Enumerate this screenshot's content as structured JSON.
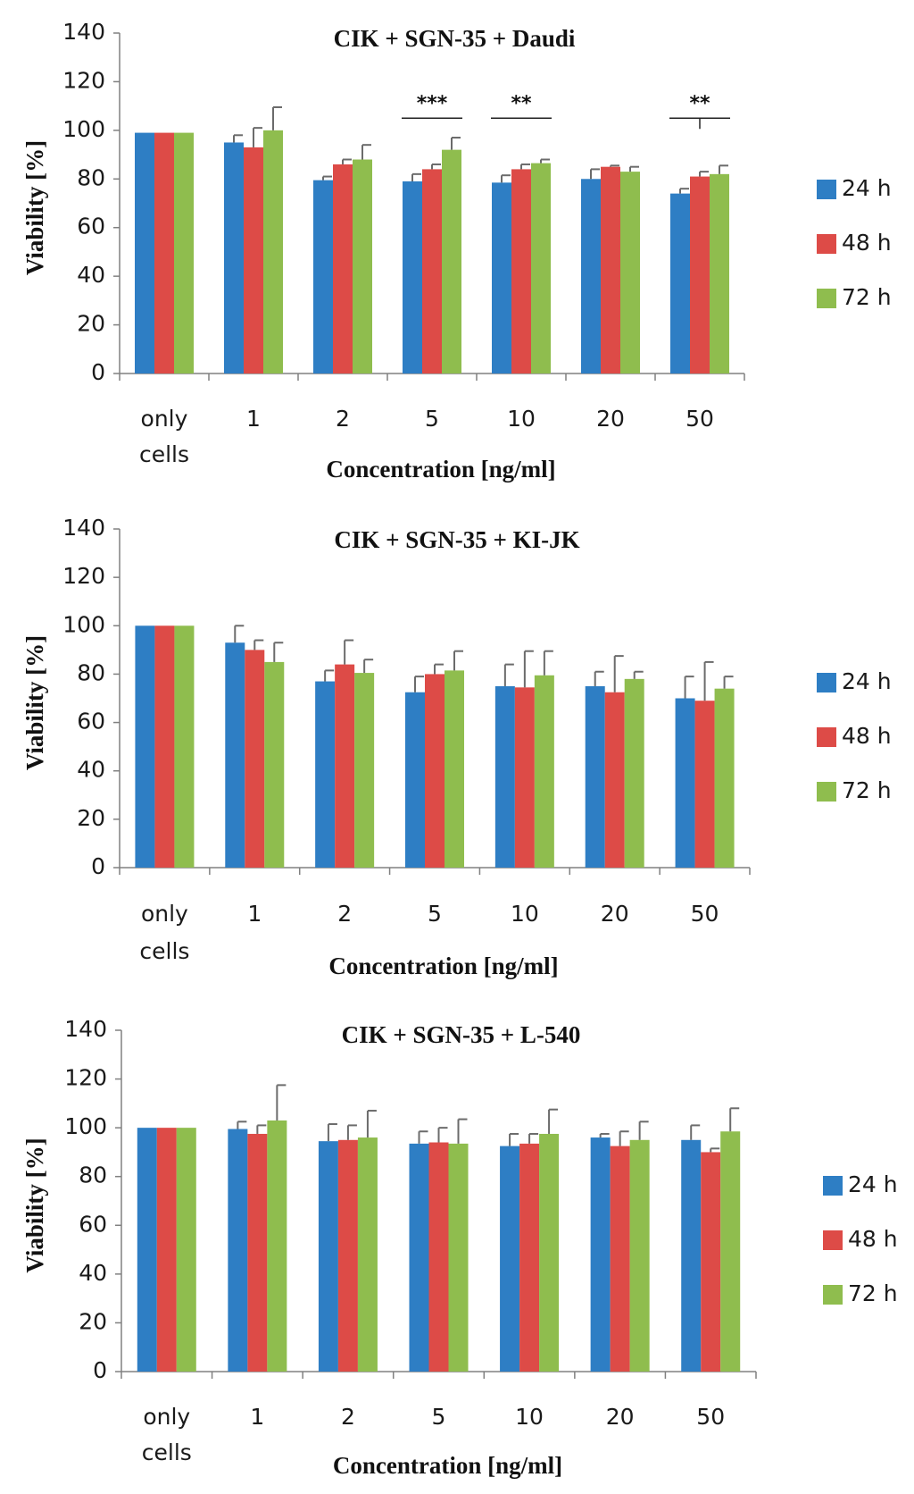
{
  "chart_data": [
    {
      "type": "bar",
      "title": "CIK + SGN-35 + Daudi",
      "xlabel": "Concentration [ng/ml]",
      "ylabel": "Viability [%]",
      "ylim": [
        0,
        140
      ],
      "yticks": [
        0,
        20,
        40,
        60,
        80,
        100,
        120,
        140
      ],
      "grid": false,
      "legend_position": "right",
      "categories": [
        [
          "only",
          "cells"
        ],
        [
          "1"
        ],
        [
          "2"
        ],
        [
          "5"
        ],
        [
          "10"
        ],
        [
          "20"
        ],
        [
          "50"
        ]
      ],
      "series": [
        {
          "name": "24 h",
          "color": "#2e7ec4",
          "values": [
            99,
            95,
            79.5,
            79,
            78.5,
            80,
            74
          ],
          "errors": [
            0,
            3,
            1.5,
            3,
            3,
            4,
            2
          ]
        },
        {
          "name": "48 h",
          "color": "#dd4b47",
          "values": [
            99,
            93,
            86,
            84,
            84,
            85,
            81
          ],
          "errors": [
            0,
            8,
            2,
            2,
            2,
            0.5,
            2
          ]
        },
        {
          "name": "72 h",
          "color": "#8fbd4e",
          "values": [
            99,
            100,
            88,
            92,
            86.5,
            83,
            82
          ],
          "errors": [
            0,
            9.5,
            6,
            5,
            1.5,
            2,
            3.5
          ]
        }
      ],
      "significance": [
        {
          "category_index": 3,
          "label": "***",
          "y": 105
        },
        {
          "category_index": 4,
          "label": "**",
          "y": 105
        },
        {
          "category_index": 6,
          "label": "**",
          "y": 105
        }
      ]
    },
    {
      "type": "bar",
      "title": "CIK + SGN-35 + KI-JK",
      "xlabel": "Concentration [ng/ml]",
      "ylabel": "Viability [%]",
      "ylim": [
        0,
        140
      ],
      "yticks": [
        0,
        20,
        40,
        60,
        80,
        100,
        120,
        140
      ],
      "grid": false,
      "legend_position": "right",
      "categories": [
        [
          "only",
          "cells"
        ],
        [
          "1"
        ],
        [
          "2"
        ],
        [
          "5"
        ],
        [
          "10"
        ],
        [
          "20"
        ],
        [
          "50"
        ]
      ],
      "series": [
        {
          "name": "24 h",
          "color": "#2e7ec4",
          "values": [
            100,
            93,
            77,
            72.5,
            75,
            75,
            70
          ],
          "errors": [
            0,
            7,
            4.5,
            6.5,
            9,
            6,
            9
          ]
        },
        {
          "name": "48 h",
          "color": "#dd4b47",
          "values": [
            100,
            90,
            84,
            80,
            74.5,
            72.5,
            69
          ],
          "errors": [
            0,
            4,
            10,
            4,
            15,
            15,
            16
          ]
        },
        {
          "name": "72 h",
          "color": "#8fbd4e",
          "values": [
            100,
            85,
            80.5,
            81.5,
            79.5,
            78,
            74
          ],
          "errors": [
            0,
            8,
            5.5,
            8,
            10,
            3,
            5
          ]
        }
      ],
      "significance": []
    },
    {
      "type": "bar",
      "title": "CIK + SGN-35 + L-540",
      "xlabel": "Concentration [ng/ml]",
      "ylabel": "Viability [%]",
      "ylim": [
        0,
        140
      ],
      "yticks": [
        0,
        20,
        40,
        60,
        80,
        100,
        120,
        140
      ],
      "grid": false,
      "legend_position": "right",
      "categories": [
        [
          "only",
          "cells"
        ],
        [
          "1"
        ],
        [
          "2"
        ],
        [
          "5"
        ],
        [
          "10"
        ],
        [
          "20"
        ],
        [
          "50"
        ]
      ],
      "series": [
        {
          "name": "24 h",
          "color": "#2e7ec4",
          "values": [
            100,
            99.5,
            94.5,
            93.5,
            92.5,
            96,
            95
          ],
          "errors": [
            0,
            3,
            7,
            5,
            5,
            1.5,
            6
          ]
        },
        {
          "name": "48 h",
          "color": "#dd4b47",
          "values": [
            100,
            97.5,
            95,
            94,
            93.5,
            92.5,
            90
          ],
          "errors": [
            0,
            3.5,
            6,
            6,
            4,
            6,
            1.5
          ]
        },
        {
          "name": "72 h",
          "color": "#8fbd4e",
          "values": [
            100,
            103,
            96,
            93.5,
            97.5,
            95,
            98.5
          ],
          "errors": [
            0,
            14.5,
            11,
            10,
            10,
            7.5,
            9.5
          ]
        }
      ],
      "significance": []
    }
  ]
}
